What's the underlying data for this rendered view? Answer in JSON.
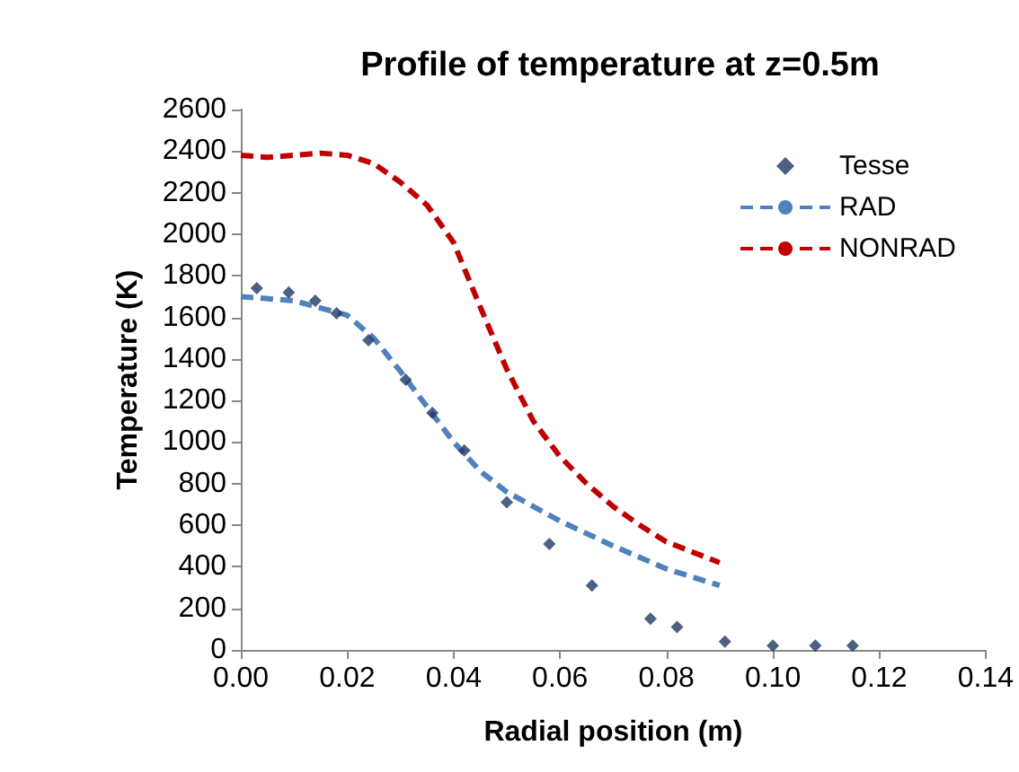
{
  "chart_data": {
    "type": "line",
    "title": "Profile of temperature at z=0.5m",
    "xlabel": "Radial position (m)",
    "ylabel": "Temperature (K)",
    "xlim": [
      0,
      0.14
    ],
    "xticks": [
      {
        "value": 0,
        "label": "0.00"
      },
      {
        "value": 0.02,
        "label": "0.02"
      },
      {
        "value": 0.04,
        "label": "0.04"
      },
      {
        "value": 0.06,
        "label": "0.06"
      },
      {
        "value": 0.08,
        "label": "0.08"
      },
      {
        "value": 0.1,
        "label": "0.10"
      },
      {
        "value": 0.12,
        "label": "0.12"
      },
      {
        "value": 0.14,
        "label": "0.14"
      }
    ],
    "ylim": [
      0,
      2600
    ],
    "yticks": [
      0,
      200,
      400,
      600,
      800,
      1000,
      1200,
      1400,
      1600,
      1800,
      2000,
      2200,
      2400,
      2600
    ],
    "grid": false,
    "legend": "top right",
    "series": [
      {
        "name": "Tesse",
        "type": "scatter",
        "marker": "diamond",
        "color": "#1f3864",
        "x": [
          0.003,
          0.009,
          0.014,
          0.018,
          0.024,
          0.031,
          0.036,
          0.042,
          0.05,
          0.058,
          0.066,
          0.077,
          0.082,
          0.091,
          0.1,
          0.108,
          0.115
        ],
        "values": [
          1740,
          1720,
          1680,
          1620,
          1490,
          1300,
          1140,
          960,
          710,
          510,
          310,
          150,
          110,
          40,
          20,
          20,
          20
        ]
      },
      {
        "name": "RAD",
        "marker": "none",
        "line_style": "dashed",
        "color": "#4f81bd",
        "x": [
          0,
          0.01,
          0.02,
          0.025,
          0.03,
          0.035,
          0.04,
          0.045,
          0.05,
          0.06,
          0.07,
          0.08,
          0.09
        ],
        "values": [
          1700,
          1680,
          1610,
          1500,
          1340,
          1170,
          1000,
          860,
          760,
          620,
          500,
          390,
          310
        ]
      },
      {
        "name": "NONRAD",
        "marker": "none",
        "line_style": "dashed",
        "color": "#c00000",
        "x": [
          0,
          0.005,
          0.01,
          0.015,
          0.02,
          0.025,
          0.03,
          0.035,
          0.04,
          0.045,
          0.05,
          0.055,
          0.06,
          0.065,
          0.07,
          0.075,
          0.08,
          0.085,
          0.09
        ],
        "values": [
          2380,
          2370,
          2380,
          2390,
          2380,
          2340,
          2250,
          2140,
          1960,
          1650,
          1350,
          1100,
          930,
          800,
          690,
          600,
          520,
          470,
          420
        ]
      }
    ]
  }
}
